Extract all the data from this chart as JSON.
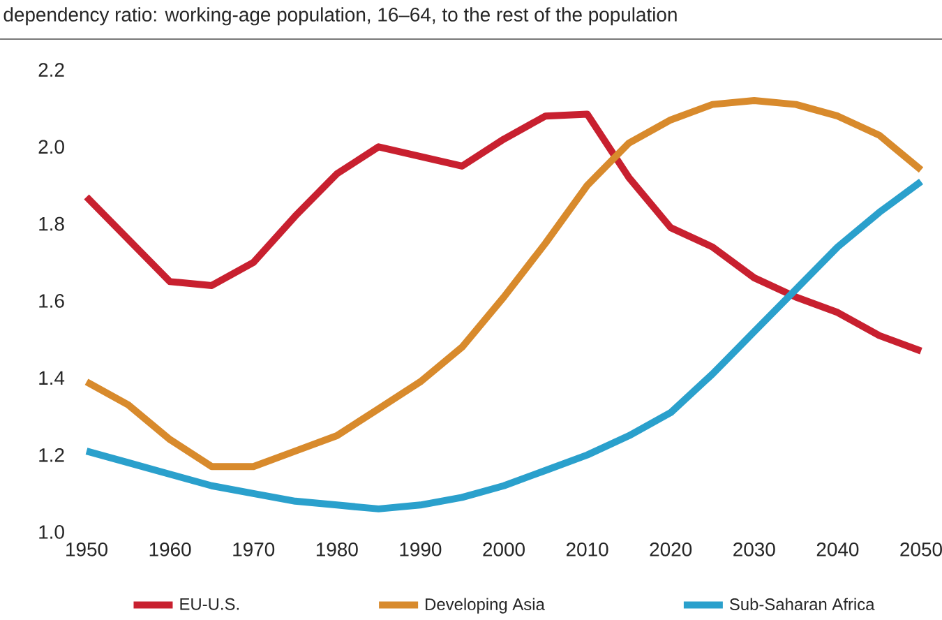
{
  "chart_data": {
    "type": "line",
    "title": "dependency ratio: working-age population, 16–64, to the rest of the population",
    "x": [
      1950,
      1955,
      1960,
      1965,
      1970,
      1975,
      1980,
      1985,
      1990,
      1995,
      2000,
      2005,
      2010,
      2015,
      2020,
      2025,
      2030,
      2035,
      2040,
      2045,
      2050
    ],
    "series": [
      {
        "name": "EU-U.S.",
        "color": "#c8202f",
        "values": [
          1.87,
          1.76,
          1.65,
          1.64,
          1.7,
          1.82,
          1.93,
          2.0,
          1.975,
          1.95,
          2.02,
          2.08,
          2.085,
          1.92,
          1.79,
          1.74,
          1.66,
          1.61,
          1.57,
          1.51,
          1.47
        ]
      },
      {
        "name": "Developing Asia",
        "color": "#d88a2c",
        "values": [
          1.39,
          1.33,
          1.24,
          1.17,
          1.17,
          1.21,
          1.25,
          1.32,
          1.39,
          1.48,
          1.61,
          1.75,
          1.9,
          2.01,
          2.07,
          2.11,
          2.12,
          2.11,
          2.08,
          2.03,
          1.94
        ]
      },
      {
        "name": "Sub-Saharan Africa",
        "color": "#2aa0cc",
        "values": [
          1.21,
          1.18,
          1.15,
          1.12,
          1.1,
          1.08,
          1.07,
          1.06,
          1.07,
          1.09,
          1.12,
          1.16,
          1.2,
          1.25,
          1.31,
          1.41,
          1.52,
          1.63,
          1.74,
          1.83,
          1.91
        ]
      }
    ],
    "xlim": [
      1950,
      2050
    ],
    "xticks": [
      1950,
      1960,
      1970,
      1980,
      1990,
      2000,
      2010,
      2020,
      2030,
      2040,
      2050
    ],
    "ylim": [
      1.0,
      2.2
    ],
    "yticks": [
      {
        "value": 1.0,
        "label": "1.0"
      },
      {
        "value": 1.2,
        "label": "1.2"
      },
      {
        "value": 1.4,
        "label": "1.4"
      },
      {
        "value": 1.6,
        "label": "1.6"
      },
      {
        "value": 1.8,
        "label": "1.8"
      },
      {
        "value": 2.0,
        "label": "2.0"
      },
      {
        "value": 2.2,
        "label": "2.2"
      }
    ],
    "legend": "bottom",
    "marker": "none",
    "line_style": "solid"
  }
}
